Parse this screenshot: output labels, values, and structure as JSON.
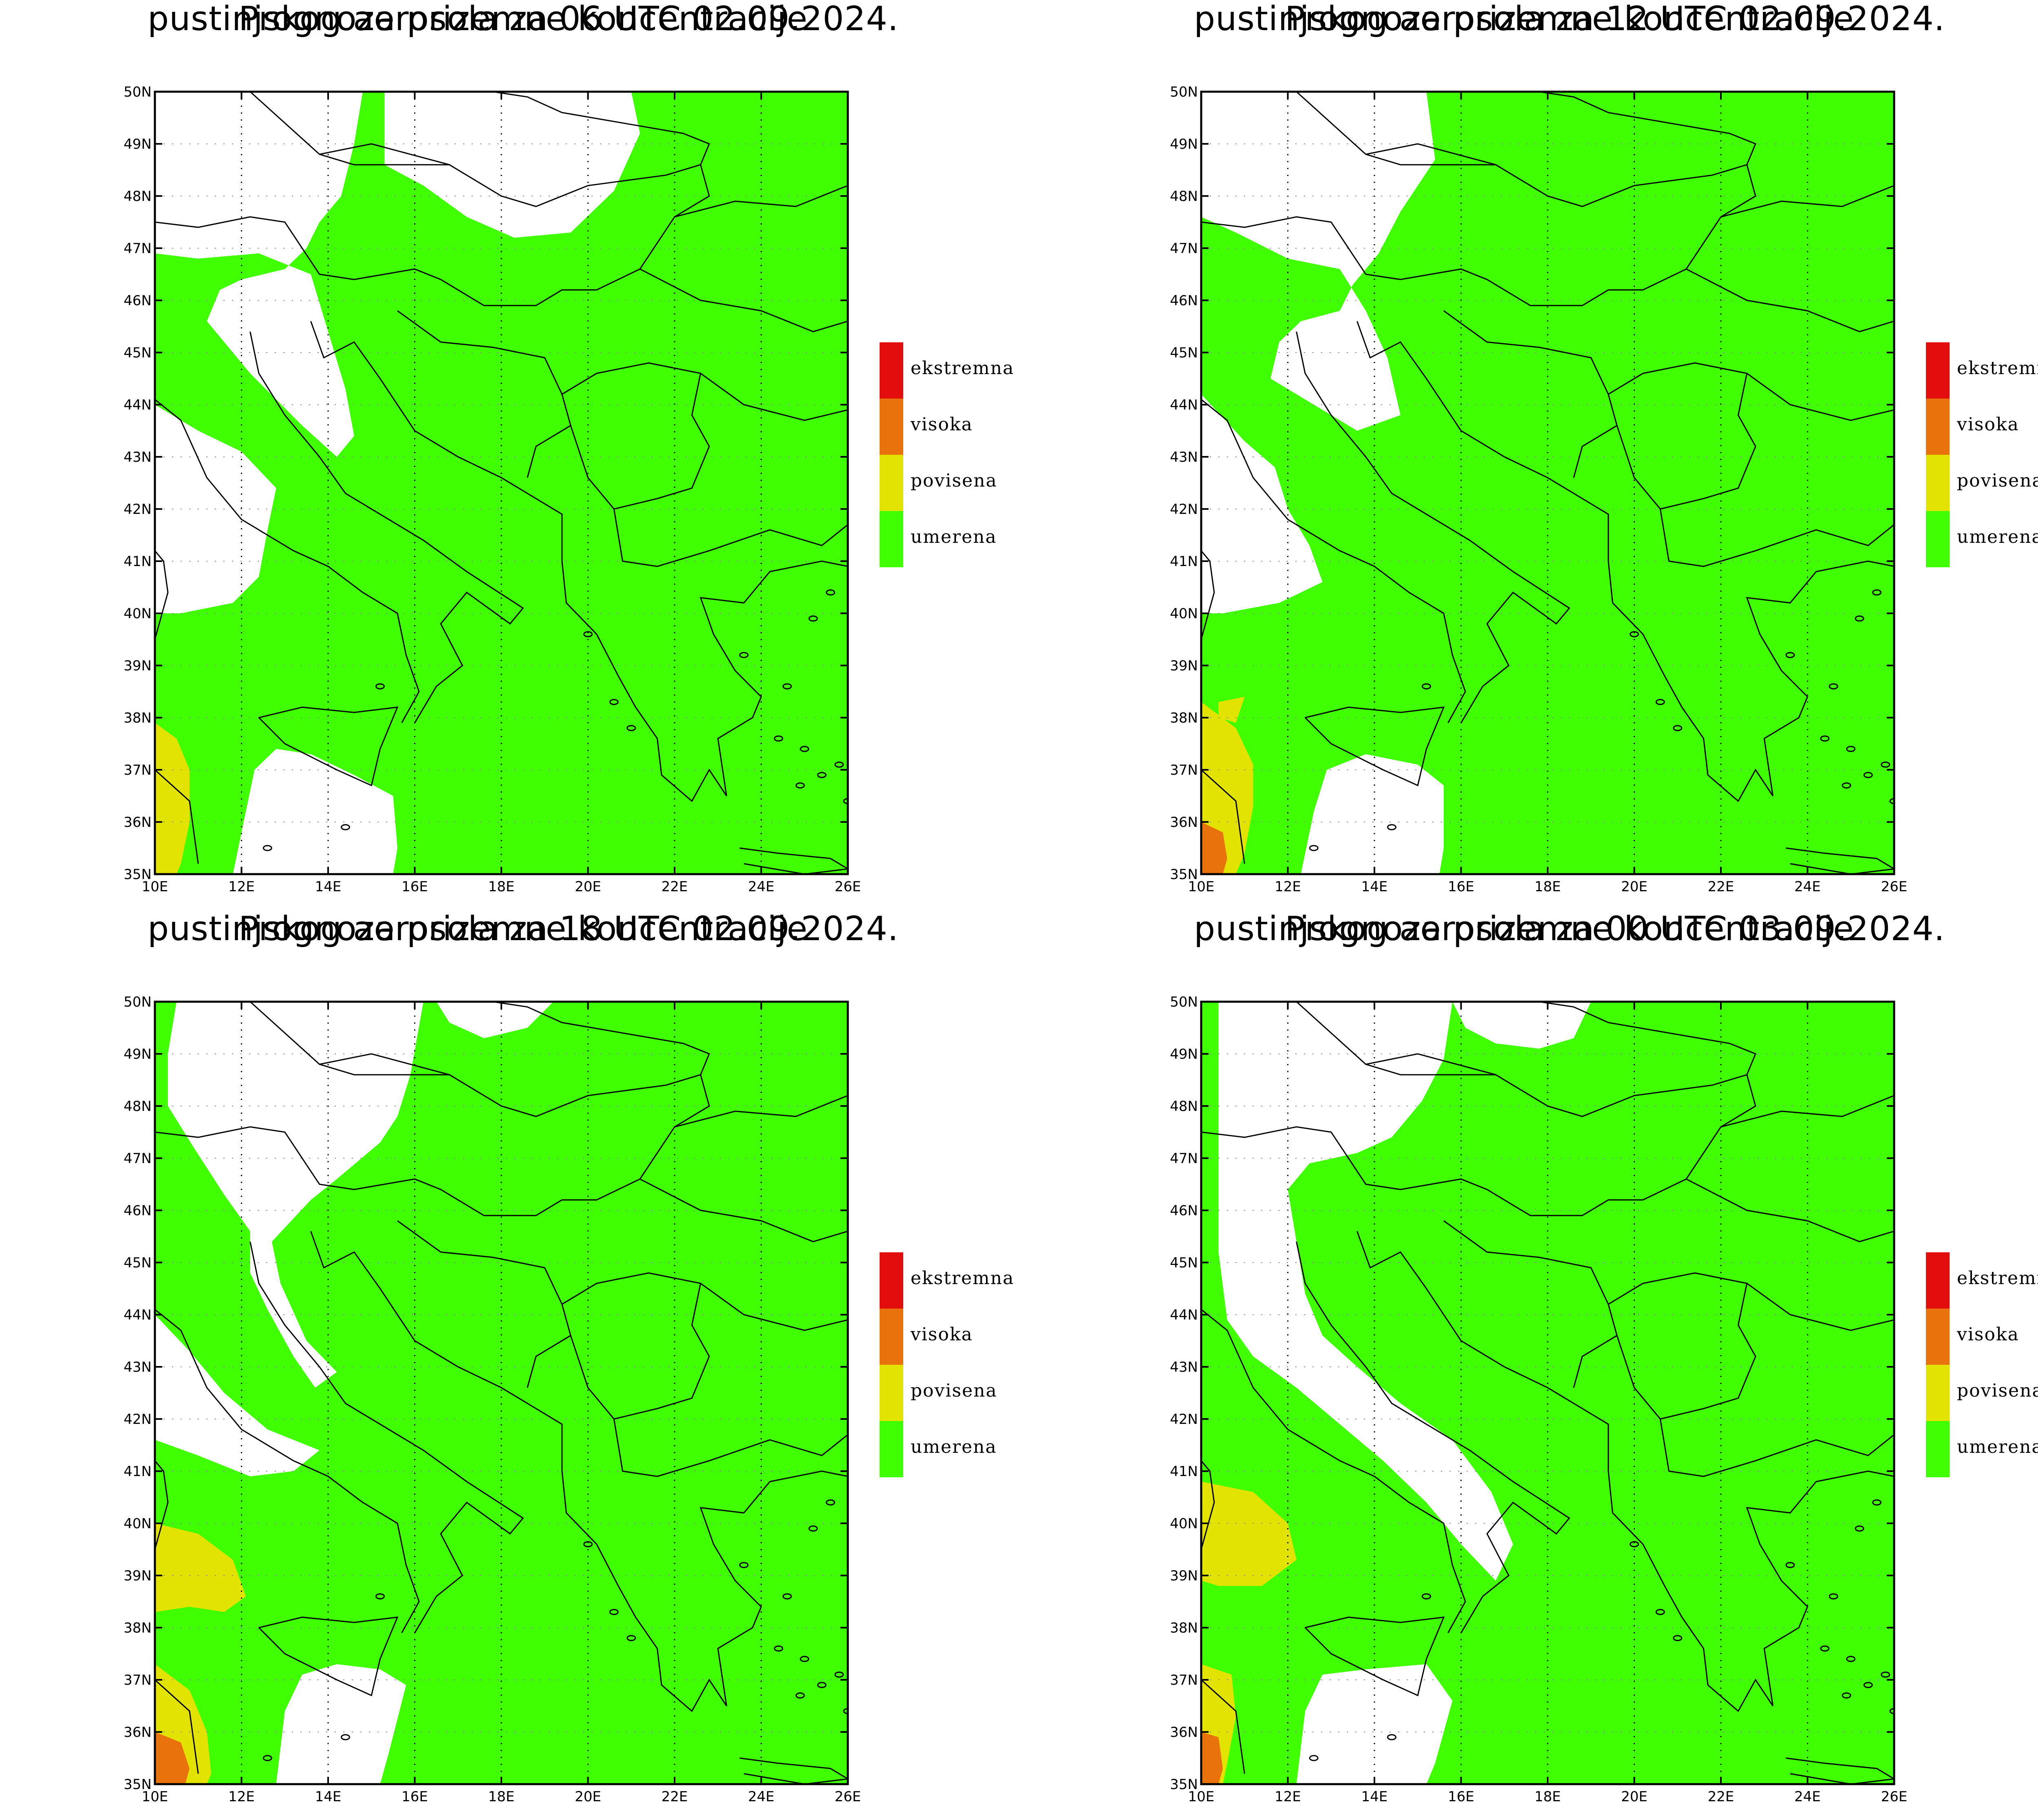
{
  "colors": {
    "ekstremna": "#e30d0d",
    "visoka": "#e8730c",
    "povisena": "#e3e300",
    "umerena": "#40ff00",
    "land_border": "#000000"
  },
  "legend": [
    {
      "key": "ekstremna",
      "label": "ekstremna"
    },
    {
      "key": "visoka",
      "label": "visoka"
    },
    {
      "key": "povisena",
      "label": "povisena"
    },
    {
      "key": "umerena",
      "label": "umerena"
    }
  ],
  "axes": {
    "x_ticks": [
      "10E",
      "12E",
      "14E",
      "16E",
      "18E",
      "20E",
      "22E",
      "24E",
      "26E"
    ],
    "y_ticks": [
      "35N",
      "36N",
      "37N",
      "38N",
      "39N",
      "40N",
      "41N",
      "42N",
      "43N",
      "44N",
      "45N",
      "46N",
      "47N",
      "48N",
      "49N",
      "50N"
    ],
    "lon_range": [
      10,
      26
    ],
    "lat_range": [
      35,
      50
    ]
  },
  "panels": [
    {
      "title_line1": "Prognoza prizemne koncentracije",
      "title_line2": "pustinjskog aerosola za 06 UTC 02.09.2024."
    },
    {
      "title_line1": "Prognoza prizemne koncentracije",
      "title_line2": "pustinjskog aerosola za 12 UTC 02.09.2024."
    },
    {
      "title_line1": "Prognoza prizemne koncentracije",
      "title_line2": "pustinjskog aerosola za 18 UTC 02.09.2024."
    },
    {
      "title_line1": "Prognoza prizemne koncentracije",
      "title_line2": "pustinjskog aerosola za 00 UTC 03.09.2024."
    }
  ]
}
